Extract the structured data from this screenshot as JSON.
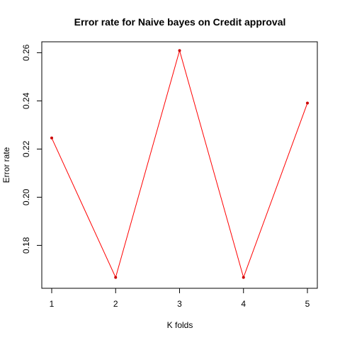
{
  "chart_data": {
    "type": "line",
    "title": "Error rate for Naive bayes on Credit approval",
    "xlabel": "K folds",
    "ylabel": "Error rate",
    "x": [
      1,
      2,
      3,
      4,
      5
    ],
    "values": [
      0.2246,
      0.1667,
      0.2609,
      0.1667,
      0.2391
    ],
    "xlim": [
      1,
      5
    ],
    "ylim": [
      0.1663,
      0.2613
    ],
    "x_ticks": [
      "1",
      "2",
      "3",
      "4",
      "5"
    ],
    "y_ticks": [
      "0.18",
      "0.20",
      "0.22",
      "0.24",
      "0.26"
    ],
    "y_tick_values": [
      0.18,
      0.2,
      0.22,
      0.24,
      0.26
    ],
    "line_color": "#ff0000",
    "point_color": "#cc0000",
    "grid": false,
    "legend": "none"
  }
}
